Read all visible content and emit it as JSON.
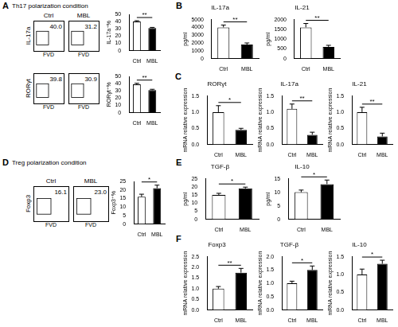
{
  "panels": [
    {
      "label": "A",
      "title": "Th17 polarization condition"
    },
    {
      "label": "B"
    },
    {
      "label": "C"
    },
    {
      "label": "D",
      "title": "Treg polarization condition"
    },
    {
      "label": "E"
    },
    {
      "label": "F"
    }
  ],
  "flow_plots": [
    {
      "headers": [
        "Ctrl",
        "MBL"
      ],
      "y_label": "IL-17a",
      "x_label": "FVD",
      "gates": [
        "40.0",
        "31.2"
      ]
    },
    {
      "y_label": "RORγt",
      "x_label": "FVD",
      "gates": [
        "39.8",
        "30.9"
      ]
    },
    {
      "headers": [
        "Ctrl",
        "MBL"
      ],
      "y_label": "Foxp3",
      "x_label": "FVD",
      "gates": [
        "16.1",
        "23.0"
      ]
    }
  ],
  "chart_data": [
    {
      "type": "bar",
      "y_label": "IL-17a⁺%",
      "categories": [
        "Ctrl",
        "MBL"
      ],
      "values": [
        40,
        31
      ],
      "errors": [
        1.2,
        1
      ],
      "colors": [
        "#ffffff",
        "#000000"
      ],
      "ylim": [
        0,
        50
      ],
      "yticks": [
        0,
        10,
        20,
        30,
        40,
        50
      ],
      "grid": false,
      "annotation": "**"
    },
    {
      "type": "bar",
      "y_label": "RORγt⁺%",
      "categories": [
        "Ctrl",
        "MBL"
      ],
      "values": [
        39,
        31
      ],
      "errors": [
        1.5,
        1.2
      ],
      "colors": [
        "#ffffff",
        "#000000"
      ],
      "ylim": [
        0,
        50
      ],
      "yticks": [
        0,
        10,
        20,
        30,
        40,
        50
      ],
      "grid": false,
      "annotation": "**"
    },
    {
      "type": "bar",
      "title": "IL-17a",
      "y_label": "pg/ml",
      "categories": [
        "Ctrl",
        "MBL"
      ],
      "values": [
        4000,
        1800
      ],
      "errors": [
        300,
        200
      ],
      "colors": [
        "#ffffff",
        "#000000"
      ],
      "ylim": [
        0,
        5000
      ],
      "yticks": [
        0,
        1000,
        2000,
        3000,
        4000,
        5000
      ],
      "grid": false,
      "annotation": "**"
    },
    {
      "type": "bar",
      "title": "IL-21",
      "y_label": "pg/ml",
      "categories": [
        "Ctrl",
        "MBL"
      ],
      "values": [
        1600,
        600
      ],
      "errors": [
        200,
        80
      ],
      "colors": [
        "#ffffff",
        "#000000"
      ],
      "ylim": [
        0,
        2000
      ],
      "yticks": [
        0,
        500,
        1000,
        1500,
        2000
      ],
      "grid": false,
      "annotation": "**"
    },
    {
      "type": "bar",
      "title": "RORγt",
      "y_label": "mRNA relative expression",
      "categories": [
        "Ctrl",
        "MBL"
      ],
      "values": [
        1.0,
        0.45
      ],
      "errors": [
        0.2,
        0.05
      ],
      "colors": [
        "#ffffff",
        "#000000"
      ],
      "ylim": [
        0,
        1.5
      ],
      "yticks": [
        {
          "value": 0,
          "label": "0.0"
        },
        {
          "value": 0.5,
          "label": "0.5"
        },
        {
          "value": 1,
          "label": "1.0"
        },
        {
          "value": 1.5,
          "label": "1.5"
        }
      ],
      "grid": false,
      "annotation": "*"
    },
    {
      "type": "bar",
      "title": "IL-17a",
      "y_label": "mRNA relative expression",
      "categories": [
        "Ctrl",
        "MBL"
      ],
      "values": [
        1.1,
        0.3
      ],
      "errors": [
        0.15,
        0.08
      ],
      "colors": [
        "#ffffff",
        "#000000"
      ],
      "ylim": [
        0,
        1.5
      ],
      "yticks": [
        {
          "value": 0,
          "label": "0.0"
        },
        {
          "value": 0.5,
          "label": "0.5"
        },
        {
          "value": 1,
          "label": "1.0"
        },
        {
          "value": 1.5,
          "label": "1.5"
        }
      ],
      "grid": false,
      "annotation": "**"
    },
    {
      "type": "bar",
      "title": "IL-21",
      "y_label": "mRNA relative expression",
      "categories": [
        "Ctrl",
        "MBL"
      ],
      "values": [
        1.0,
        0.25
      ],
      "errors": [
        0.15,
        0.1
      ],
      "colors": [
        "#ffffff",
        "#000000"
      ],
      "ylim": [
        0,
        1.5
      ],
      "yticks": [
        {
          "value": 0,
          "label": "0.0"
        },
        {
          "value": 0.5,
          "label": "0.5"
        },
        {
          "value": 1,
          "label": "1.0"
        },
        {
          "value": 1.5,
          "label": "1.5"
        }
      ],
      "grid": false,
      "annotation": "**"
    },
    {
      "type": "bar",
      "y_label": "Foxp3⁺%",
      "categories": [
        "Ctrl",
        "MBL"
      ],
      "values": [
        16,
        21
      ],
      "errors": [
        1.5,
        1.8
      ],
      "colors": [
        "#ffffff",
        "#000000"
      ],
      "ylim": [
        0,
        25
      ],
      "yticks": [
        0,
        5,
        10,
        15,
        20,
        25
      ],
      "grid": false,
      "annotation": "*"
    },
    {
      "type": "bar",
      "title": "TGF-β",
      "y_label": "pg/ml",
      "categories": [
        "Ctrl",
        "MBL"
      ],
      "values": [
        15,
        19
      ],
      "errors": [
        1,
        0.8
      ],
      "colors": [
        "#ffffff",
        "#000000"
      ],
      "ylim": [
        0,
        25
      ],
      "yticks": [
        0,
        5,
        10,
        15,
        20,
        25
      ],
      "grid": false,
      "annotation": "*"
    },
    {
      "type": "bar",
      "title": "IL-10",
      "y_label": "pg/ml",
      "categories": [
        "Ctrl",
        "MBL"
      ],
      "values": [
        10,
        13
      ],
      "errors": [
        0.8,
        1.5
      ],
      "colors": [
        "#ffffff",
        "#000000"
      ],
      "ylim": [
        0,
        15
      ],
      "yticks": [
        0,
        5,
        10,
        15
      ],
      "grid": false,
      "annotation": "*"
    },
    {
      "type": "bar",
      "title": "Foxp3",
      "y_label": "mRNA relative expression",
      "categories": [
        "Ctrl",
        "MBL"
      ],
      "values": [
        1.0,
        1.75
      ],
      "errors": [
        0.1,
        0.2
      ],
      "colors": [
        "#ffffff",
        "#000000"
      ],
      "ylim": [
        0,
        2.5
      ],
      "yticks": [
        {
          "value": 0,
          "label": "0.0"
        },
        {
          "value": 0.5,
          "label": "0.5"
        },
        {
          "value": 1,
          "label": "1.0"
        },
        {
          "value": 1.5,
          "label": "1.5"
        },
        {
          "value": 2,
          "label": "2.0"
        },
        {
          "value": 2.5,
          "label": "2.5"
        }
      ],
      "grid": false,
      "annotation": "**"
    },
    {
      "type": "bar",
      "title": "TGF-β",
      "y_label": "mRNA relative expression",
      "categories": [
        "Ctrl",
        "MBL"
      ],
      "values": [
        1.0,
        1.5
      ],
      "errors": [
        0.08,
        0.15
      ],
      "colors": [
        "#ffffff",
        "#000000"
      ],
      "ylim": [
        0,
        2
      ],
      "yticks": [
        {
          "value": 0,
          "label": "0.0"
        },
        {
          "value": 0.5,
          "label": "0.5"
        },
        {
          "value": 1,
          "label": "1.0"
        },
        {
          "value": 1.5,
          "label": "1.5"
        },
        {
          "value": 2,
          "label": "2.0"
        }
      ],
      "grid": false,
      "annotation": "*"
    },
    {
      "type": "bar",
      "title": "IL-10",
      "y_label": "mRNA relative expression",
      "categories": [
        "Ctrl",
        "MBL"
      ],
      "values": [
        1.0,
        1.3
      ],
      "errors": [
        0.15,
        0.1
      ],
      "colors": [
        "#ffffff",
        "#000000"
      ],
      "ylim": [
        0,
        1.5
      ],
      "yticks": [
        {
          "value": 0,
          "label": "0.0"
        },
        {
          "value": 0.5,
          "label": "0.5"
        },
        {
          "value": 1,
          "label": "1.0"
        },
        {
          "value": 1.5,
          "label": "1.5"
        }
      ],
      "grid": false,
      "annotation": "*"
    }
  ]
}
